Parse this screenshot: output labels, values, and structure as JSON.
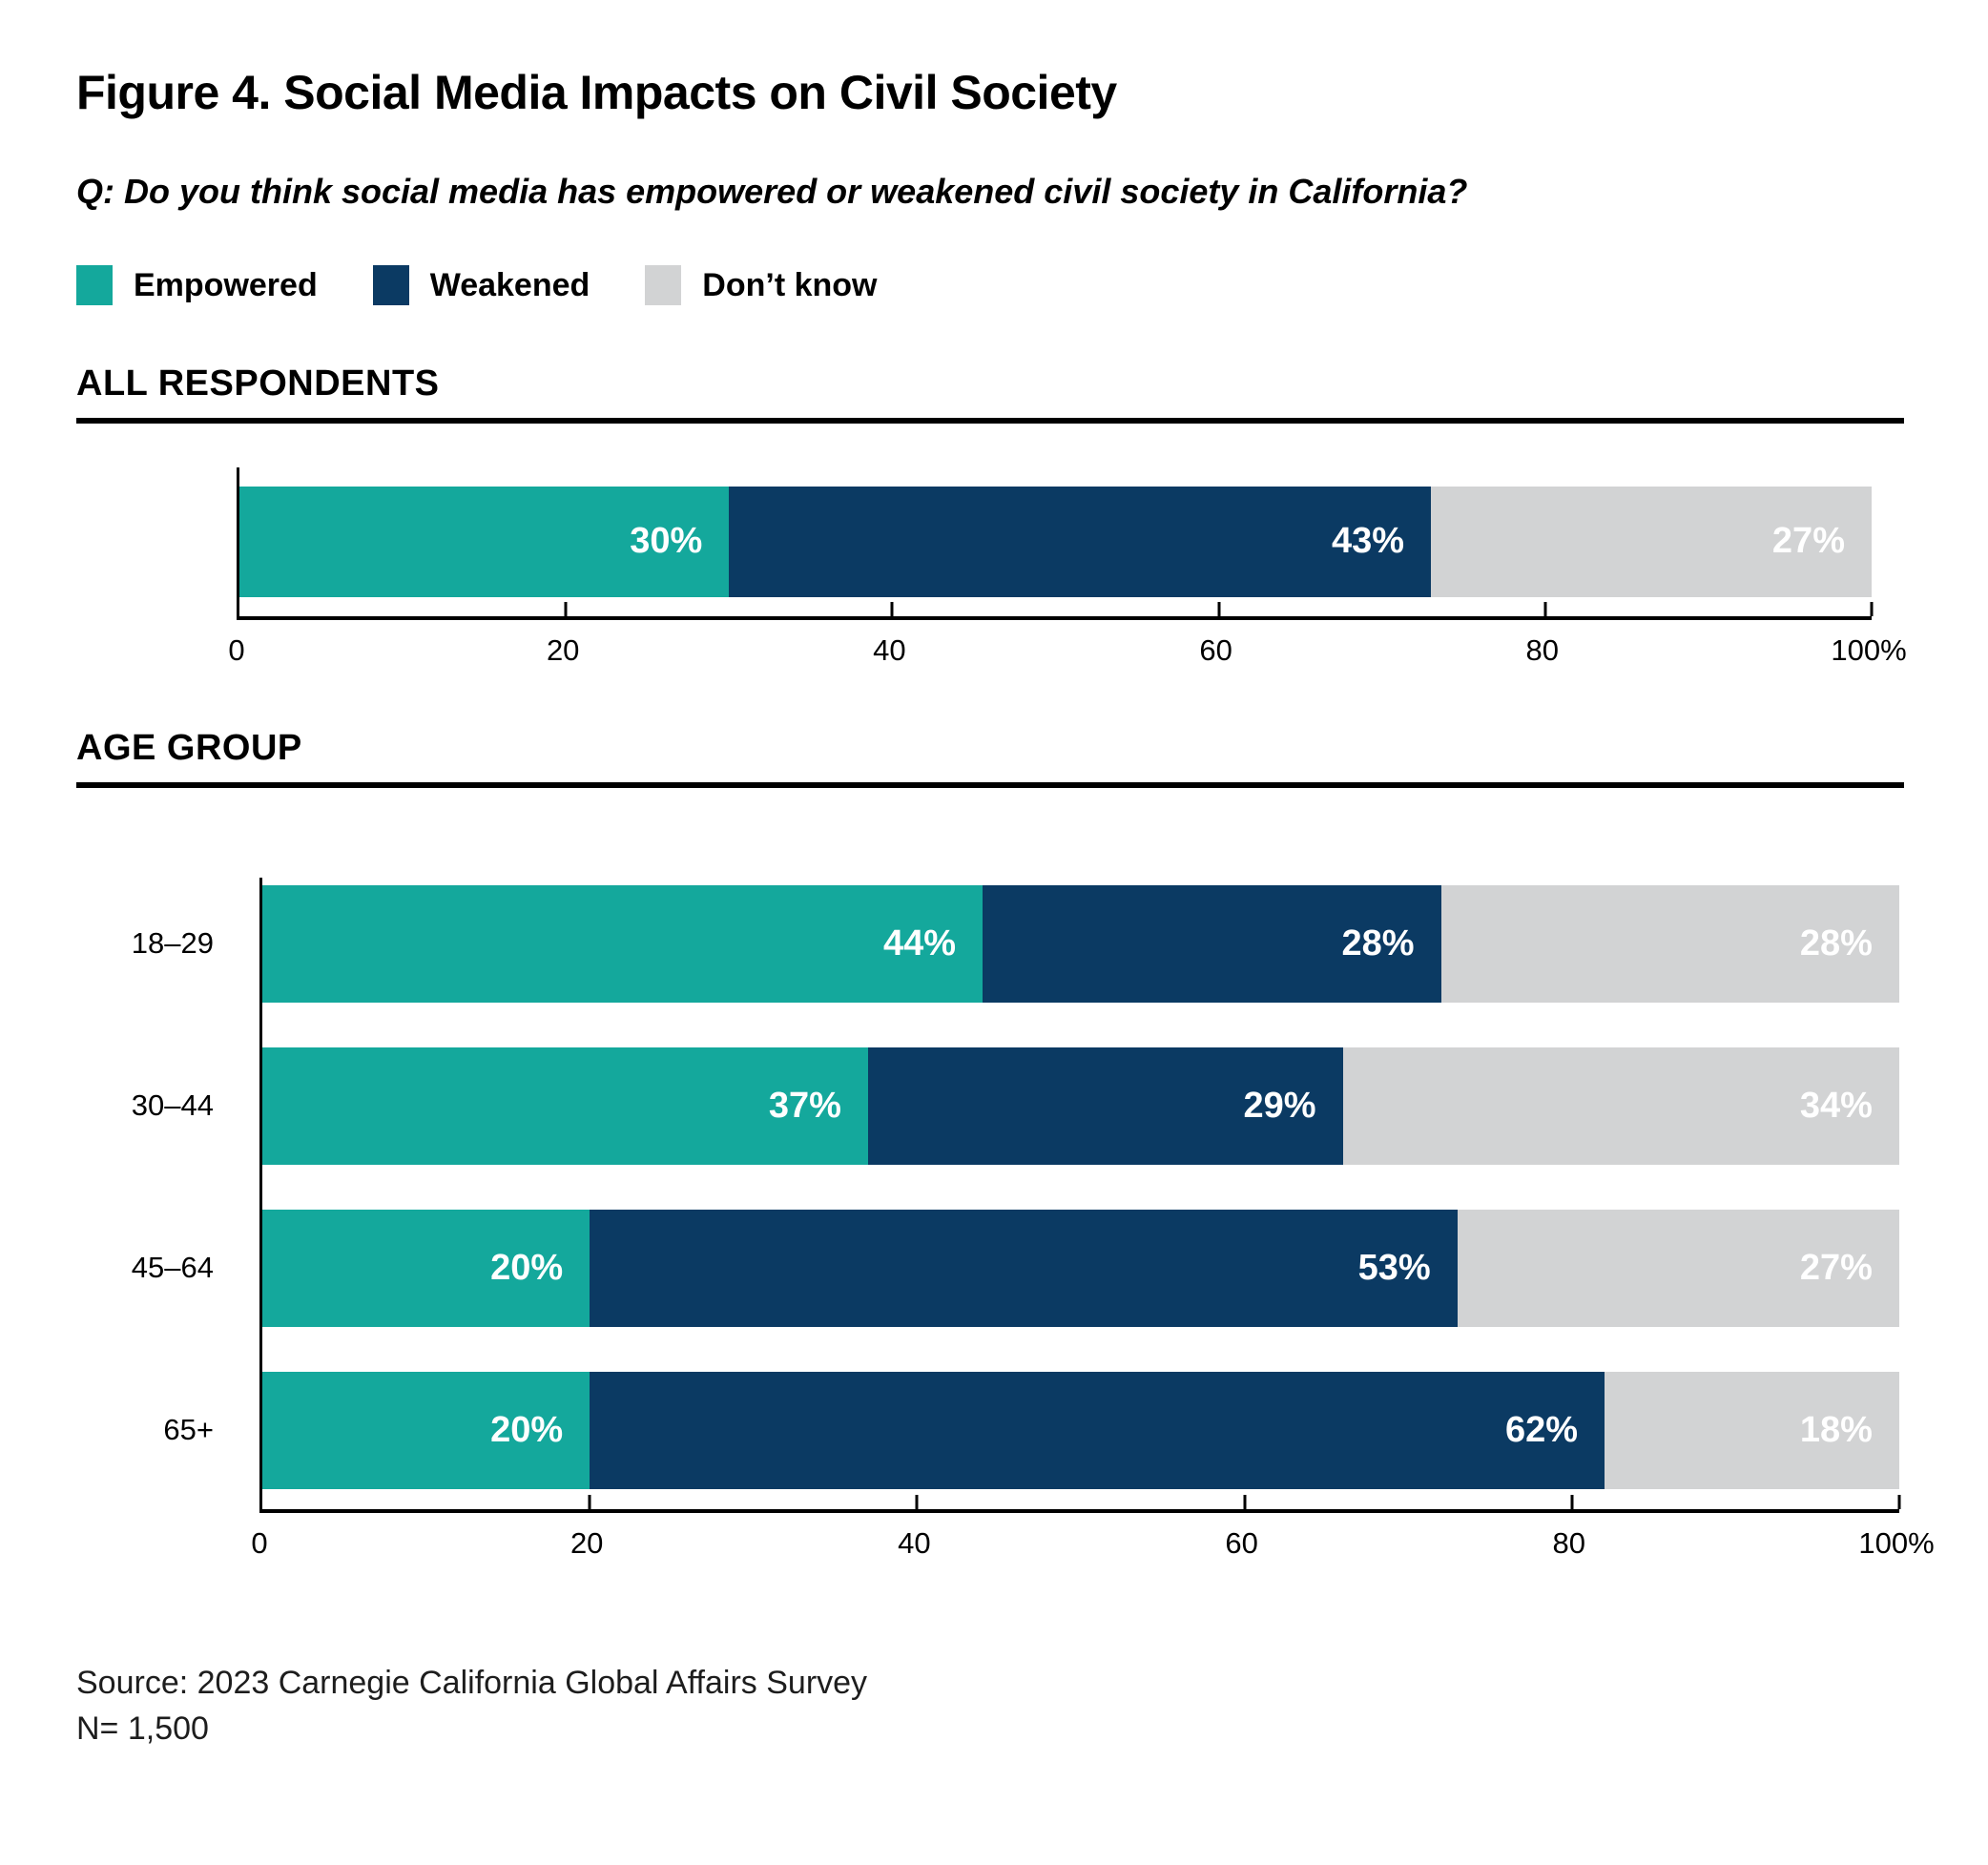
{
  "page": {
    "title": "Figure 4. Social Media Impacts on Civil Society",
    "question": "Q: Do you think social media has empowered or weakened civil society in California?",
    "source": "Source: 2023 Carnegie California Global Affairs Survey",
    "sample_size": "N= 1,500"
  },
  "colors": {
    "empowered": "#14a89c",
    "weakened": "#0b3a63",
    "dont_know": "#d2d3d4",
    "axis": "#000000",
    "bar_label_text": "#ffffff"
  },
  "legend": {
    "items": [
      {
        "label": "Empowered",
        "color": "#14a89c"
      },
      {
        "label": "Weakened",
        "color": "#0b3a63"
      },
      {
        "label": "Don’t know",
        "color": "#d2d3d4"
      }
    ]
  },
  "sections": {
    "all_respondents_heading": "ALL RESPONDENTS",
    "age_group_heading": "AGE GROUP"
  },
  "chart_data": [
    {
      "type": "bar",
      "stacked": true,
      "orientation": "horizontal",
      "section": "ALL RESPONDENTS",
      "categories": [
        ""
      ],
      "series": [
        {
          "name": "Empowered",
          "color": "#14a89c",
          "values": [
            30
          ]
        },
        {
          "name": "Weakened",
          "color": "#0b3a63",
          "values": [
            43
          ]
        },
        {
          "name": "Don’t know",
          "color": "#d2d3d4",
          "values": [
            27
          ]
        }
      ],
      "value_suffix": "%",
      "xlim": [
        0,
        100
      ],
      "x_ticks": [
        0,
        20,
        40,
        60,
        80,
        100
      ],
      "x_tick_labels": [
        "0",
        "20",
        "40",
        "60",
        "80",
        "100%"
      ],
      "grid": false,
      "legend_position": "top"
    },
    {
      "type": "bar",
      "stacked": true,
      "orientation": "horizontal",
      "section": "AGE GROUP",
      "categories": [
        "18–29",
        "30–44",
        "45–64",
        "65+"
      ],
      "series": [
        {
          "name": "Empowered",
          "color": "#14a89c",
          "values": [
            44,
            37,
            20,
            20
          ]
        },
        {
          "name": "Weakened",
          "color": "#0b3a63",
          "values": [
            28,
            29,
            53,
            62
          ]
        },
        {
          "name": "Don’t know",
          "color": "#d2d3d4",
          "values": [
            28,
            34,
            27,
            18
          ]
        }
      ],
      "value_suffix": "%",
      "xlim": [
        0,
        100
      ],
      "x_ticks": [
        0,
        20,
        40,
        60,
        80,
        100
      ],
      "x_tick_labels": [
        "0",
        "20",
        "40",
        "60",
        "80",
        "100%"
      ],
      "grid": false,
      "legend_position": "top"
    }
  ]
}
